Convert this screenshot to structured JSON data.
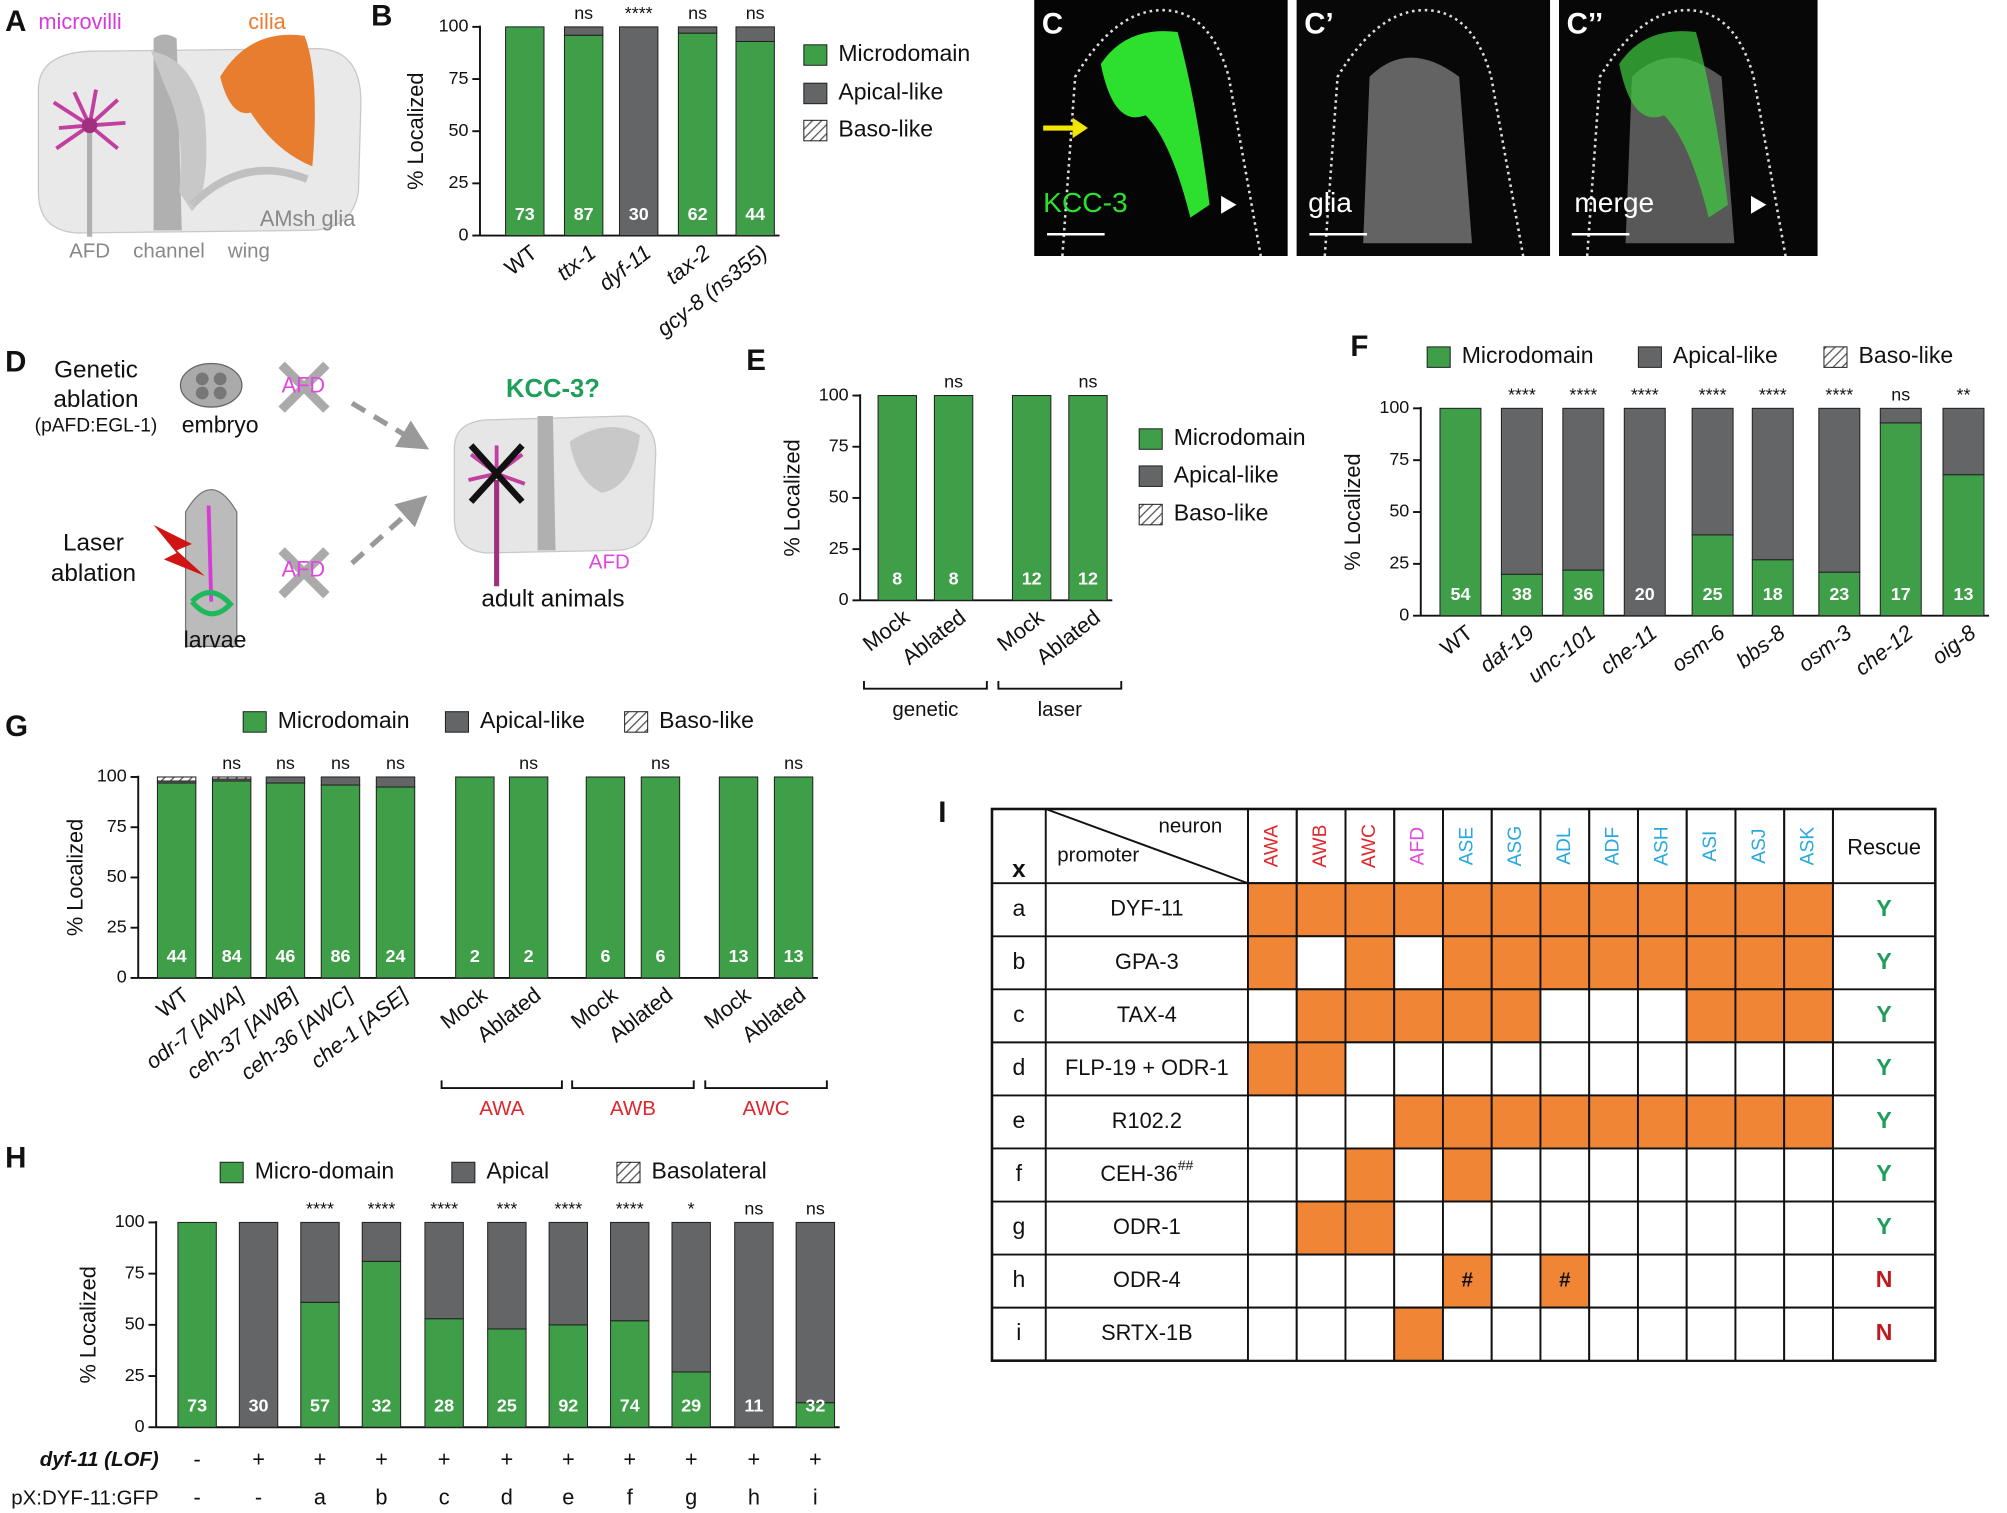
{
  "panel_labels": [
    "A",
    "B",
    "D",
    "E",
    "F",
    "G",
    "H",
    "I"
  ],
  "panel_a": {
    "microvilli": "microvilli",
    "cilia": "cilia",
    "glia": "AMsh glia",
    "afd": "AFD",
    "channel": "channel",
    "wing": "wing"
  },
  "panel_c": {
    "labels": [
      "C",
      "C’",
      "C’’"
    ],
    "channels": [
      "KCC-3",
      "glia",
      "merge"
    ]
  },
  "panel_d": {
    "genetic": [
      "Genetic",
      "ablation"
    ],
    "promoter": "(pAFD:EGL-1)",
    "embryo": "embryo",
    "afd": "AFD",
    "laser": [
      "Laser",
      "ablation"
    ],
    "larvae": "larvae",
    "question": "KCC-3?",
    "adult": "adult animals"
  },
  "chart_data": [
    {
      "type": "bar",
      "stacked": true,
      "ylabel": "% Localized",
      "ylim": [
        0,
        100
      ],
      "yticks": [
        0,
        25,
        50,
        75,
        100
      ],
      "categories": [
        "WT",
        "ttx-1",
        "dyf-11",
        "tax-2",
        "gcy-8 (ns355)"
      ],
      "series": [
        {
          "name": "Microdomain",
          "color": "#3f9e48",
          "values": [
            100,
            96,
            0,
            97,
            93
          ]
        },
        {
          "name": "Apical-like",
          "color": "#646567",
          "values": [
            0,
            4,
            100,
            3,
            7
          ]
        },
        {
          "name": "Baso-like",
          "color": "#646567",
          "pattern": "hatch",
          "values": [
            0,
            0,
            0,
            0,
            0
          ]
        }
      ],
      "n_labels": [
        73,
        87,
        30,
        62,
        44
      ],
      "significance": [
        null,
        "ns",
        "****",
        "ns",
        "ns"
      ]
    },
    {
      "type": "bar",
      "stacked": true,
      "ylabel": "% Localized",
      "ylim": [
        0,
        100
      ],
      "yticks": [
        0,
        25,
        50,
        75,
        100
      ],
      "categories": [
        "Mock",
        "Ablated",
        "Mock",
        "Ablated"
      ],
      "series": [
        {
          "name": "Microdomain",
          "color": "#3f9e48",
          "values": [
            100,
            100,
            100,
            100
          ]
        },
        {
          "name": "Apical-like",
          "color": "#646567",
          "values": [
            0,
            0,
            0,
            0
          ]
        },
        {
          "name": "Baso-like",
          "color": "#646567",
          "pattern": "hatch",
          "values": [
            0,
            0,
            0,
            0
          ]
        }
      ],
      "n_labels": [
        8,
        8,
        12,
        12
      ],
      "significance": [
        null,
        "ns",
        null,
        "ns"
      ],
      "groups": [
        "genetic",
        "laser"
      ],
      "group_color": "#111111"
    },
    {
      "type": "bar",
      "stacked": true,
      "ylabel": "% Localized",
      "ylim": [
        0,
        100
      ],
      "yticks": [
        0,
        25,
        50,
        75,
        100
      ],
      "categories": [
        "WT",
        "daf-19",
        "unc-101",
        "che-11",
        "osm-6",
        "bbs-8",
        "osm-3",
        "che-12",
        "oig-8"
      ],
      "series": [
        {
          "name": "Microdomain",
          "color": "#3f9e48",
          "values": [
            100,
            20,
            22,
            0,
            39,
            27,
            21,
            93,
            68
          ]
        },
        {
          "name": "Apical-like",
          "color": "#646567",
          "values": [
            0,
            80,
            78,
            100,
            61,
            73,
            79,
            7,
            32
          ]
        },
        {
          "name": "Baso-like",
          "color": "#646567",
          "pattern": "hatch",
          "values": [
            0,
            0,
            0,
            0,
            0,
            0,
            0,
            0,
            0
          ]
        }
      ],
      "n_labels": [
        54,
        38,
        36,
        20,
        25,
        18,
        23,
        17,
        13
      ],
      "significance": [
        null,
        "****",
        "****",
        "****",
        "****",
        "****",
        "****",
        "ns",
        "**"
      ]
    },
    {
      "type": "bar",
      "stacked": true,
      "ylabel": "% Localized",
      "ylim": [
        0,
        100
      ],
      "yticks": [
        0,
        25,
        50,
        75,
        100
      ],
      "categories": [
        "WT",
        "odr-7 [AWA]",
        "ceh-37 [AWB]",
        "ceh-36 [AWC]",
        "che-1 [ASE]",
        "Mock",
        "Ablated",
        "Mock",
        "Ablated",
        "Mock",
        "Ablated"
      ],
      "series": [
        {
          "name": "Microdomain",
          "color": "#3f9e48",
          "values": [
            97,
            98,
            97,
            96,
            95,
            100,
            100,
            100,
            100,
            100,
            100
          ]
        },
        {
          "name": "Apical-like",
          "color": "#646567",
          "values": [
            1,
            1,
            3,
            4,
            5,
            0,
            0,
            0,
            0,
            0,
            0
          ]
        },
        {
          "name": "Baso-like",
          "color": "#646567",
          "pattern": "hatch",
          "values": [
            2,
            1,
            0,
            0,
            0,
            0,
            0,
            0,
            0,
            0,
            0
          ]
        }
      ],
      "n_labels": [
        44,
        84,
        46,
        86,
        24,
        2,
        2,
        6,
        6,
        13,
        13
      ],
      "significance": [
        null,
        "ns",
        "ns",
        "ns",
        "ns",
        null,
        "ns",
        null,
        "ns",
        null,
        "ns"
      ],
      "groups": [
        "AWA",
        "AWB",
        "AWC"
      ],
      "group_color": "#e0262d"
    },
    {
      "type": "bar",
      "stacked": true,
      "ylabel": "% Localized",
      "ylim": [
        0,
        100
      ],
      "yticks": [
        0,
        25,
        50,
        75,
        100
      ],
      "series": [
        {
          "name": "Micro-domain",
          "color": "#3f9e48",
          "values": [
            100,
            0,
            61,
            81,
            53,
            48,
            50,
            52,
            27,
            0,
            12
          ]
        },
        {
          "name": "Apical",
          "color": "#646567",
          "values": [
            0,
            100,
            39,
            19,
            47,
            52,
            50,
            48,
            73,
            100,
            88
          ]
        },
        {
          "name": "Basolateral",
          "color": "#646567",
          "pattern": "hatch",
          "values": [
            0,
            0,
            0,
            0,
            0,
            0,
            0,
            0,
            0,
            0,
            0
          ]
        }
      ],
      "n_labels": [
        73,
        30,
        57,
        32,
        28,
        25,
        92,
        74,
        29,
        11,
        32
      ],
      "significance": [
        null,
        null,
        "****",
        "****",
        "****",
        "***",
        "****",
        "****",
        "*",
        "ns",
        "ns"
      ],
      "rows": [
        {
          "label": "dyf-11 (LOF)",
          "values": [
            "-",
            "+",
            "+",
            "+",
            "+",
            "+",
            "+",
            "+",
            "+",
            "+",
            "+"
          ]
        },
        {
          "label": "pX:DYF-11:GFP",
          "values": [
            "-",
            "-",
            "a",
            "b",
            "c",
            "d",
            "e",
            "f",
            "g",
            "h",
            "i"
          ]
        }
      ]
    }
  ],
  "table": {
    "corner": "x",
    "col_header": "neuron",
    "row_header": "promoter",
    "rescue_header": "Rescue",
    "fill_color": "#ef8535",
    "neurons": [
      {
        "name": "AWA",
        "color": "#e0262d"
      },
      {
        "name": "AWB",
        "color": "#e0262d"
      },
      {
        "name": "AWC",
        "color": "#e0262d"
      },
      {
        "name": "AFD",
        "color": "#e048e0"
      },
      {
        "name": "ASE",
        "color": "#27a8df"
      },
      {
        "name": "ASG",
        "color": "#27a8df"
      },
      {
        "name": "ADL",
        "color": "#27a8df"
      },
      {
        "name": "ADF",
        "color": "#27a8df"
      },
      {
        "name": "ASH",
        "color": "#27a8df"
      },
      {
        "name": "ASI",
        "color": "#27a8df"
      },
      {
        "name": "ASJ",
        "color": "#27a8df"
      },
      {
        "name": "ASK",
        "color": "#27a8df"
      }
    ],
    "rows": [
      {
        "id": "a",
        "promoter": "DYF-11",
        "cells": [
          true,
          true,
          true,
          true,
          true,
          true,
          true,
          true,
          true,
          true,
          true,
          true
        ],
        "rescue": "Y",
        "rescue_color": "#1f9e5a"
      },
      {
        "id": "b",
        "promoter": "GPA-3",
        "cells": [
          true,
          false,
          true,
          false,
          true,
          true,
          true,
          true,
          true,
          true,
          true,
          true
        ],
        "rescue": "Y",
        "rescue_color": "#1f9e5a"
      },
      {
        "id": "c",
        "promoter": "TAX-4",
        "cells": [
          false,
          true,
          true,
          true,
          true,
          true,
          false,
          false,
          false,
          true,
          true,
          true
        ],
        "rescue": "Y",
        "rescue_color": "#1f9e5a"
      },
      {
        "id": "d",
        "promoter": "FLP-19 + ODR-1",
        "cells": [
          true,
          true,
          false,
          false,
          false,
          false,
          false,
          false,
          false,
          false,
          false,
          false
        ],
        "rescue": "Y",
        "rescue_color": "#1f9e5a"
      },
      {
        "id": "e",
        "promoter": "R102.2",
        "cells": [
          false,
          false,
          false,
          true,
          true,
          true,
          true,
          true,
          true,
          true,
          true,
          true
        ],
        "rescue": "Y",
        "rescue_color": "#1f9e5a"
      },
      {
        "id": "f",
        "promoter": "CEH-36",
        "promoter_sup": "##",
        "cells": [
          false,
          false,
          true,
          false,
          true,
          false,
          false,
          false,
          false,
          false,
          false,
          false
        ],
        "rescue": "Y",
        "rescue_color": "#1f9e5a"
      },
      {
        "id": "g",
        "promoter": "ODR-1",
        "cells": [
          false,
          true,
          true,
          false,
          false,
          false,
          false,
          false,
          false,
          false,
          false,
          false
        ],
        "rescue": "Y",
        "rescue_color": "#1f9e5a"
      },
      {
        "id": "h",
        "promoter": "ODR-4",
        "cells": [
          false,
          false,
          false,
          false,
          "#",
          false,
          "#",
          false,
          false,
          false,
          false,
          false
        ],
        "rescue": "N",
        "rescue_color": "#c0181f"
      },
      {
        "id": "i",
        "promoter": "SRTX-1B",
        "cells": [
          false,
          false,
          false,
          true,
          false,
          false,
          false,
          false,
          false,
          false,
          false,
          false
        ],
        "rescue": "N",
        "rescue_color": "#c0181f"
      }
    ]
  }
}
